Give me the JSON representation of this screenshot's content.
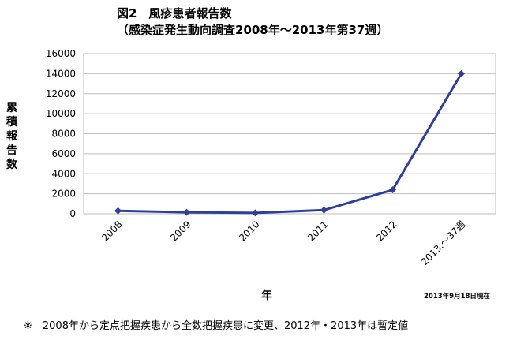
{
  "chart_data": {
    "type": "line",
    "title": "図2　風疹患者報告数",
    "subtitle": "（感染症発生動向調査2008年～2013年第37週）",
    "xlabel": "年",
    "ylabel": "累積報告数",
    "categories": [
      "2008",
      "2009",
      "2010",
      "2011",
      "2012",
      "2013.～37週"
    ],
    "series": [
      {
        "values": [
          300,
          150,
          90,
          370,
          2390,
          14000
        ],
        "color": "#2e3f9e"
      }
    ],
    "ylim": [
      0,
      16000
    ],
    "yticks": [
      0,
      2000,
      4000,
      6000,
      8000,
      10000,
      12000,
      14000,
      16000
    ],
    "grid": "horizontal",
    "marker": "diamond",
    "note": "2013年9月18日現在",
    "footnote": "※　2008年から定点把握疾患から全数把握疾患に変更、2012年・2013年は暫定値"
  }
}
